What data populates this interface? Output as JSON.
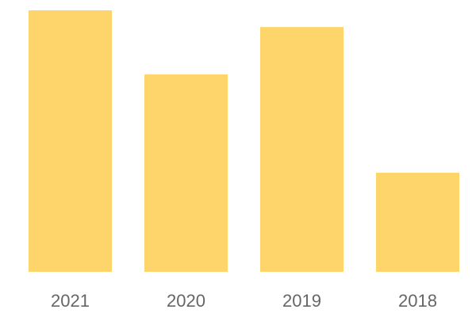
{
  "chart_data": {
    "type": "bar",
    "categories": [
      "2021",
      "2020",
      "2019",
      "2018"
    ],
    "values": [
      100,
      75.5,
      93.6,
      37.9
    ],
    "title": "",
    "xlabel": "",
    "ylabel": "",
    "ylim": [
      0,
      100
    ],
    "grid": false,
    "legend": "none",
    "bar_color": "#FDD56B",
    "tick_label_color": "#666666"
  }
}
